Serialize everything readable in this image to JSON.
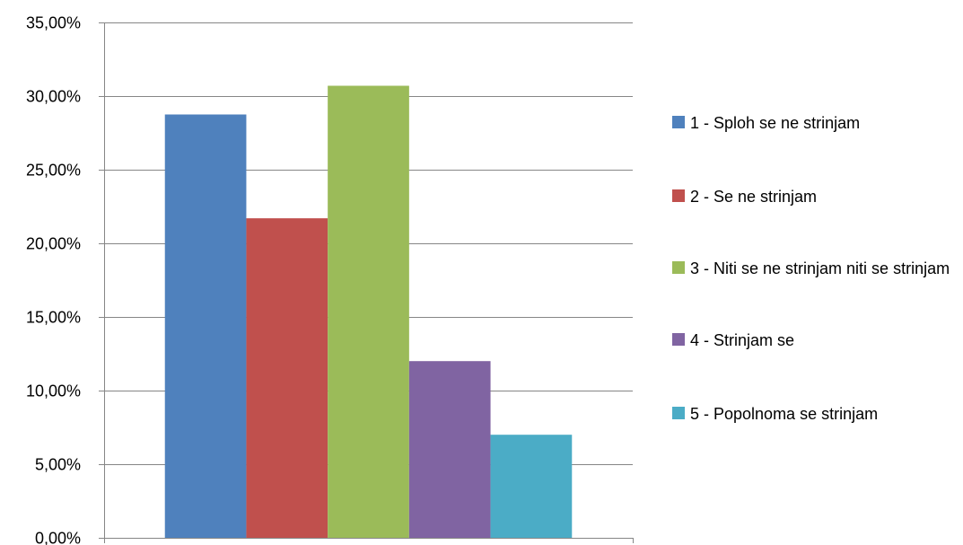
{
  "chart_data": {
    "type": "bar",
    "categories": [
      ""
    ],
    "series": [
      {
        "name": "1 - Sploh se ne strinjam",
        "values": [
          28.75
        ],
        "color": "#4f81bd"
      },
      {
        "name": "2 - Se ne strinjam",
        "values": [
          21.7
        ],
        "color": "#c0504d"
      },
      {
        "name": "3 - Niti se ne strinjam niti se strinjam",
        "values": [
          30.7
        ],
        "color": "#9bbb59"
      },
      {
        "name": "4 - Strinjam se",
        "values": [
          12.0
        ],
        "color": "#8064a2"
      },
      {
        "name": "5 - Popolnoma se strinjam",
        "values": [
          7.0
        ],
        "color": "#4bacc6"
      }
    ],
    "ylim": [
      0,
      35
    ],
    "ytick_labels": [
      "0,00%",
      "5,00%",
      "10,00%",
      "15,00%",
      "20,00%",
      "25,00%",
      "30,00%",
      "35,00%"
    ],
    "grid": true,
    "legend_position": "right",
    "title": "",
    "xlabel": "",
    "ylabel": ""
  }
}
